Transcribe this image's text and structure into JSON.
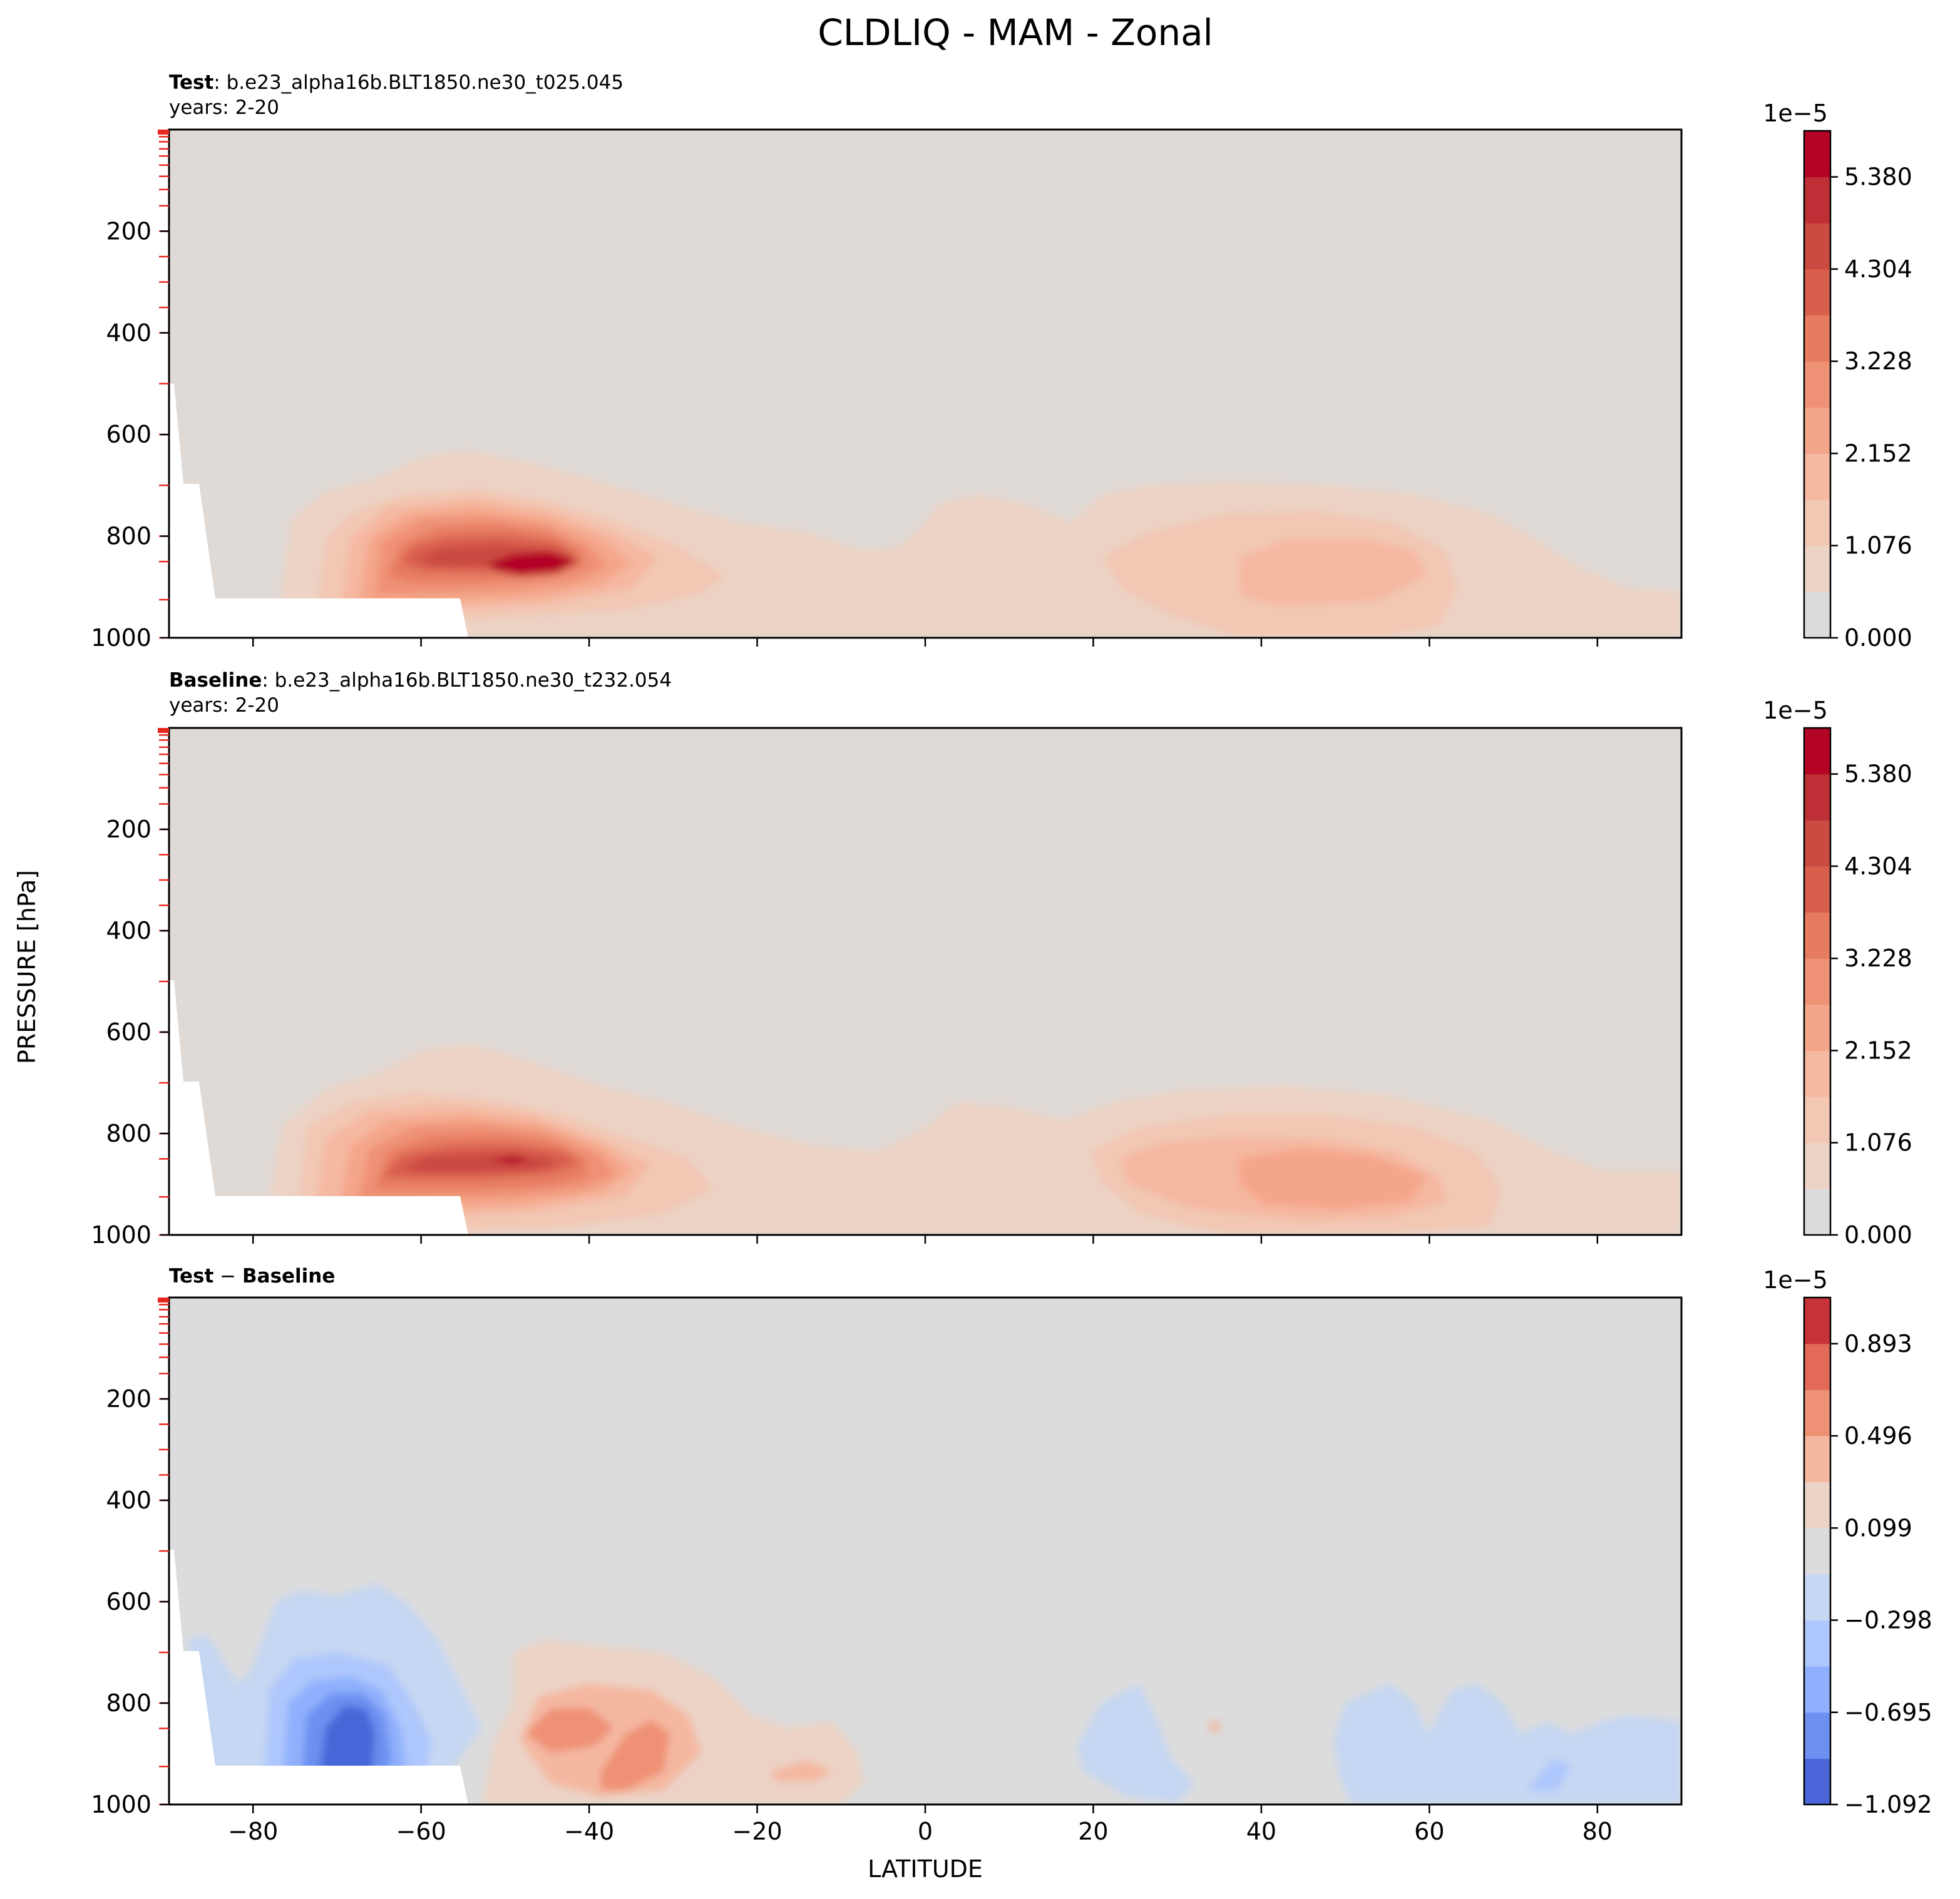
{
  "figure": {
    "title": "CLDLIQ - MAM - Zonal"
  },
  "chart_data": [
    {
      "type": "contour",
      "panel": "test",
      "title_bold": "Test",
      "title_text": ": b.e23_alpha16b.BLT1850.ne30_t025.045",
      "years": "years: 2-20",
      "xlabel": "LATITUDE",
      "ylabel": "PRESSURE [hPa]",
      "xlim": [
        -90,
        90
      ],
      "ylim": [
        1000,
        0
      ],
      "xticks": [
        -80,
        -60,
        -40,
        -20,
        0,
        20,
        40,
        60,
        80
      ],
      "yticks": [
        200,
        400,
        600,
        800,
        1000
      ],
      "colorbar": {
        "exponent": "1e−5",
        "levels": [
          0.0,
          0.538,
          1.076,
          1.614,
          2.152,
          2.69,
          3.228,
          3.766,
          4.304,
          4.842,
          5.38,
          5.918
        ],
        "tick_labels": [
          "0.000",
          "1.076",
          "2.152",
          "3.228",
          "4.304",
          "5.380"
        ],
        "colors": [
          "#dddcdc",
          "#ecd3c5",
          "#f2c8b4",
          "#f5b8a0",
          "#f4a68a",
          "#ef9174",
          "#e67b60",
          "#d95f4d",
          "#cb4a42",
          "#bf2f36",
          "#b40426"
        ]
      },
      "features": [
        {
          "name": "southern-ocean-max",
          "lat_range": [
            -80,
            -28
          ],
          "p_range": [
            640,
            1000
          ],
          "peak_value": 5.6,
          "peak_lat": -46,
          "peak_p": 860
        },
        {
          "name": "tropical-shallow",
          "lat_range": [
            -30,
            15
          ],
          "p_range": [
            780,
            990
          ],
          "peak_value": 1.4
        },
        {
          "name": "northern-mid-lat",
          "lat_range": [
            20,
            90
          ],
          "p_range": [
            720,
            1000
          ],
          "peak_value": 2.3,
          "peak_lat": 50,
          "peak_p": 880
        }
      ]
    },
    {
      "type": "contour",
      "panel": "baseline",
      "title_bold": "Baseline",
      "title_text": ": b.e23_alpha16b.BLT1850.ne30_t232.054",
      "years": "years: 2-20",
      "xlabel": "LATITUDE",
      "ylabel": "PRESSURE [hPa]",
      "xlim": [
        -90,
        90
      ],
      "ylim": [
        1000,
        0
      ],
      "xticks": [
        -80,
        -60,
        -40,
        -20,
        0,
        20,
        40,
        60,
        80
      ],
      "yticks": [
        200,
        400,
        600,
        800,
        1000
      ],
      "colorbar": {
        "exponent": "1e−5",
        "levels": [
          0.0,
          0.538,
          1.076,
          1.614,
          2.152,
          2.69,
          3.228,
          3.766,
          4.304,
          4.842,
          5.38,
          5.918
        ],
        "tick_labels": [
          "0.000",
          "1.076",
          "2.152",
          "3.228",
          "4.304",
          "5.380"
        ],
        "colors": [
          "#dddcdc",
          "#ecd3c5",
          "#f2c8b4",
          "#f5b8a0",
          "#f4a68a",
          "#ef9174",
          "#e67b60",
          "#d95f4d",
          "#cb4a42",
          "#bf2f36",
          "#b40426"
        ]
      },
      "features": [
        {
          "name": "southern-ocean-max",
          "lat_range": [
            -80,
            -22
          ],
          "p_range": [
            620,
            1000
          ],
          "peak_value": 5.4,
          "peak_lat": -49,
          "peak_p": 850
        },
        {
          "name": "tropical-shallow",
          "lat_range": [
            -30,
            15
          ],
          "p_range": [
            780,
            990
          ],
          "peak_value": 1.3
        },
        {
          "name": "northern-mid-lat",
          "lat_range": [
            18,
            90
          ],
          "p_range": [
            700,
            1000
          ],
          "peak_value": 2.5,
          "peak_lat": 50,
          "peak_p": 880
        }
      ]
    },
    {
      "type": "contour",
      "panel": "difference",
      "title_bold_a": "Test",
      "title_sep": " − ",
      "title_bold_b": "Baseline",
      "xlabel": "LATITUDE",
      "ylabel": "PRESSURE [hPa]",
      "xlim": [
        -90,
        90
      ],
      "ylim": [
        1000,
        0
      ],
      "xticks": [
        -80,
        -60,
        -40,
        -20,
        0,
        20,
        40,
        60,
        80
      ],
      "yticks": [
        200,
        400,
        600,
        800,
        1000
      ],
      "colorbar": {
        "exponent": "1e−5",
        "levels": [
          -1.092,
          -0.894,
          -0.695,
          -0.496,
          -0.298,
          -0.099,
          0.099,
          0.298,
          0.496,
          0.695,
          0.893,
          1.092
        ],
        "tick_labels": [
          "−1.092",
          "−0.695",
          "−0.298",
          "0.099",
          "0.496",
          "0.893"
        ],
        "colors": [
          "#4a66d8",
          "#6d8ff0",
          "#8fb0fc",
          "#aec7fc",
          "#c6d7f3",
          "#dcdcdc",
          "#ecd3c5",
          "#f4b7a0",
          "#ef9174",
          "#e26a56",
          "#c73339"
        ]
      },
      "features": [
        {
          "name": "southern-negative",
          "lat_range": [
            -86,
            -54
          ],
          "p_range": [
            580,
            1000
          ],
          "peak_value": -1.0,
          "peak_lat": -68,
          "peak_p": 860
        },
        {
          "name": "southern-positive",
          "lat_range": [
            -53,
            -7
          ],
          "p_range": [
            700,
            1000
          ],
          "peak_value": 0.65,
          "peak_lat": -44,
          "peak_p": 860
        },
        {
          "name": "subtropic-negative",
          "lat_range": [
            16,
            33
          ],
          "p_range": [
            770,
            960
          ],
          "peak_value": -0.35
        },
        {
          "name": "northern-negative",
          "lat_range": [
            45,
            90
          ],
          "p_range": [
            740,
            1000
          ],
          "peak_value": -0.5
        }
      ]
    }
  ]
}
